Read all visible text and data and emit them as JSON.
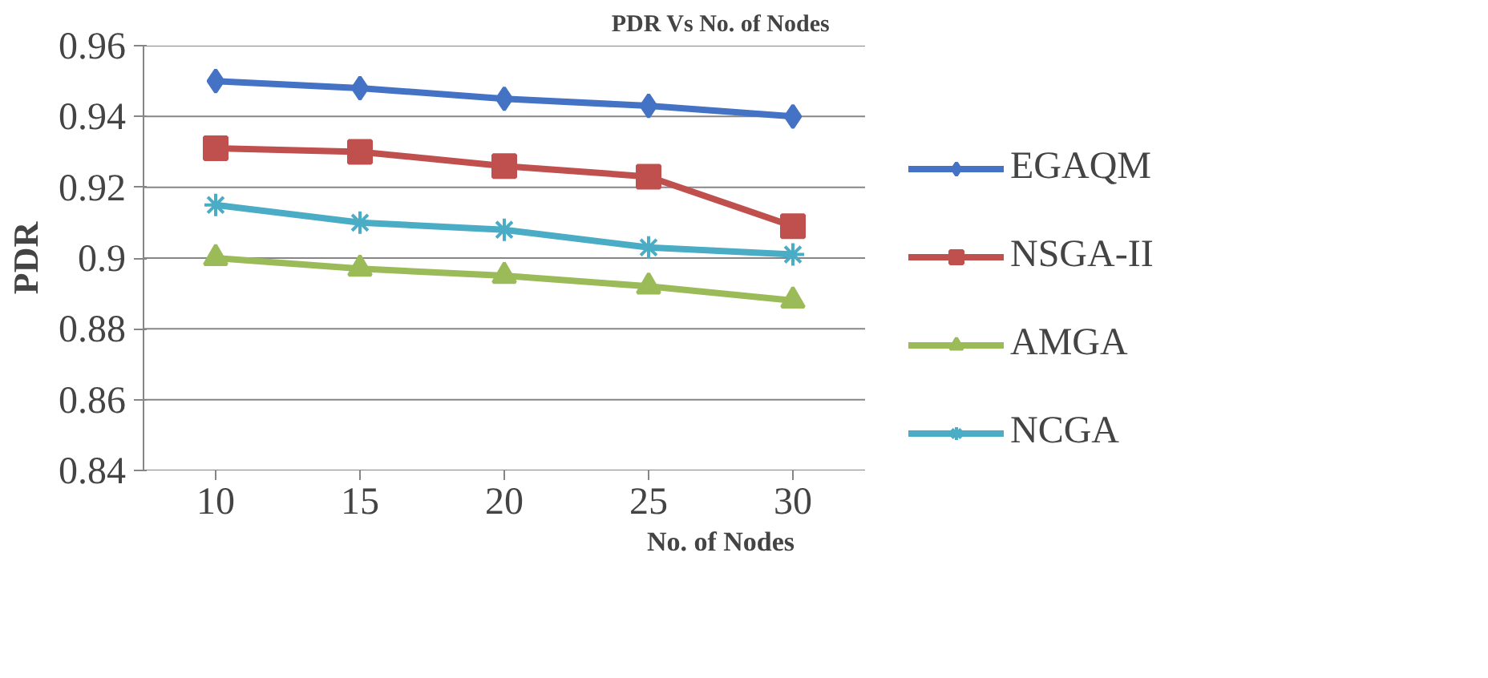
{
  "chart_data": {
    "type": "line",
    "title": "PDR Vs No. of Nodes",
    "xlabel": "No. of Nodes",
    "ylabel": "PDR",
    "categories": [
      "10",
      "15",
      "20",
      "25",
      "30"
    ],
    "series": [
      {
        "name": "EGAQM",
        "color": "#4472c4",
        "marker": "diamond",
        "values": [
          0.95,
          0.948,
          0.945,
          0.943,
          0.94
        ]
      },
      {
        "name": "NSGA-II",
        "color": "#c0504d",
        "marker": "square",
        "values": [
          0.931,
          0.93,
          0.926,
          0.923,
          0.909
        ]
      },
      {
        "name": "AMGA",
        "color": "#9bbb59",
        "marker": "triangle",
        "values": [
          0.9,
          0.897,
          0.895,
          0.892,
          0.888
        ]
      },
      {
        "name": "NCGA",
        "color": "#4bacc6",
        "marker": "cross",
        "values": [
          0.915,
          0.91,
          0.908,
          0.903,
          0.901
        ]
      }
    ],
    "ylim": [
      0.84,
      0.96
    ],
    "yticks": [
      0.84,
      0.86,
      0.88,
      0.9,
      0.92,
      0.94,
      0.96
    ],
    "grid": "y",
    "legend": "right"
  }
}
